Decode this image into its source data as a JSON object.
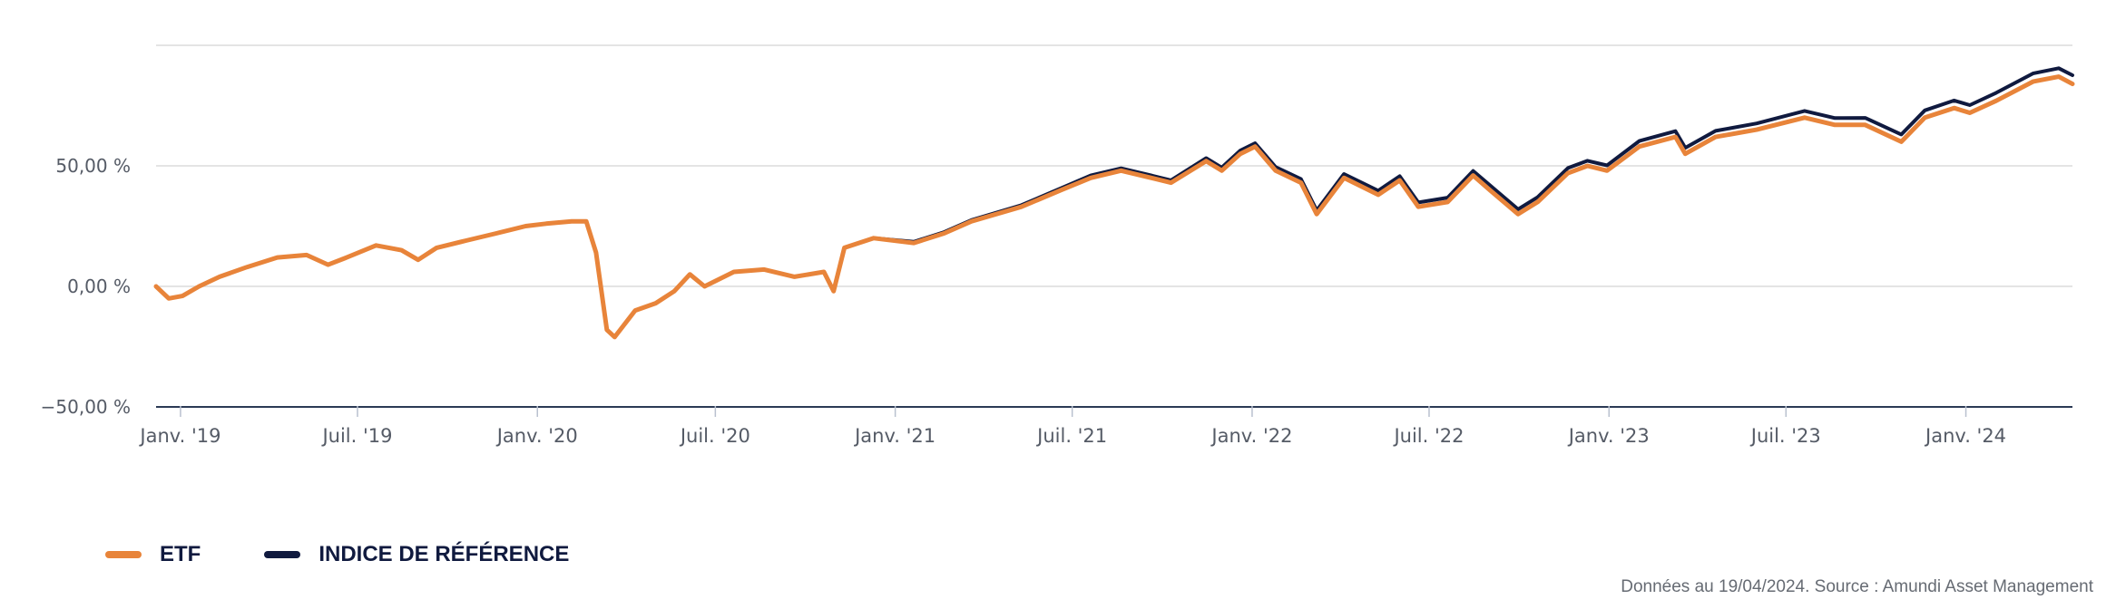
{
  "chart_data": {
    "type": "line",
    "y_ticks": [
      "−50,00 %",
      "0,00 %",
      "50,00 %",
      ""
    ],
    "ylim": [
      -50,
      100
    ],
    "grid": true,
    "x_ticks": [
      "Janv. '19",
      "Juil. '19",
      "Janv. '20",
      "Juil. '20",
      "Janv. '21",
      "Juil. '21",
      "Janv. '22",
      "Juil. '22",
      "Janv. '23",
      "Juil. '23",
      "Janv. '24"
    ],
    "x_range": [
      "2018-12-07",
      "2024-04-19"
    ],
    "legend_position": "bottom-left",
    "series": [
      {
        "name": "ETF",
        "color": "#e8843a",
        "points": [
          [
            "2018-12-07",
            0
          ],
          [
            "2018-12-20",
            -5
          ],
          [
            "2019-01-03",
            -4
          ],
          [
            "2019-01-20",
            0
          ],
          [
            "2019-02-10",
            4
          ],
          [
            "2019-03-10",
            8
          ],
          [
            "2019-04-10",
            12
          ],
          [
            "2019-05-10",
            13
          ],
          [
            "2019-06-01",
            9
          ],
          [
            "2019-06-20",
            12
          ],
          [
            "2019-07-20",
            17
          ],
          [
            "2019-08-15",
            15
          ],
          [
            "2019-09-01",
            11
          ],
          [
            "2019-09-20",
            16
          ],
          [
            "2019-10-20",
            19
          ],
          [
            "2019-11-20",
            22
          ],
          [
            "2019-12-20",
            25
          ],
          [
            "2020-01-10",
            26
          ],
          [
            "2020-02-05",
            27
          ],
          [
            "2020-02-20",
            27
          ],
          [
            "2020-03-01",
            14
          ],
          [
            "2020-03-12",
            -18
          ],
          [
            "2020-03-20",
            -21
          ],
          [
            "2020-04-10",
            -10
          ],
          [
            "2020-05-01",
            -7
          ],
          [
            "2020-05-20",
            -2
          ],
          [
            "2020-06-05",
            5
          ],
          [
            "2020-06-20",
            0
          ],
          [
            "2020-07-20",
            6
          ],
          [
            "2020-08-20",
            7
          ],
          [
            "2020-09-20",
            4
          ],
          [
            "2020-10-20",
            6
          ],
          [
            "2020-10-30",
            -2
          ],
          [
            "2020-11-10",
            16
          ],
          [
            "2020-12-10",
            20
          ],
          [
            "2021-01-20",
            18
          ],
          [
            "2021-02-20",
            22
          ],
          [
            "2021-03-20",
            27
          ],
          [
            "2021-05-10",
            33
          ],
          [
            "2021-06-20",
            40
          ],
          [
            "2021-07-20",
            45
          ],
          [
            "2021-08-20",
            48
          ],
          [
            "2021-09-20",
            45
          ],
          [
            "2021-10-10",
            43
          ],
          [
            "2021-11-15",
            52
          ],
          [
            "2021-12-01",
            48
          ],
          [
            "2021-12-20",
            55
          ],
          [
            "2022-01-04",
            58
          ],
          [
            "2022-01-25",
            48
          ],
          [
            "2022-02-20",
            43
          ],
          [
            "2022-03-08",
            30
          ],
          [
            "2022-04-05",
            45
          ],
          [
            "2022-05-10",
            38
          ],
          [
            "2022-06-01",
            44
          ],
          [
            "2022-06-20",
            33
          ],
          [
            "2022-07-20",
            35
          ],
          [
            "2022-08-15",
            46
          ],
          [
            "2022-09-01",
            40
          ],
          [
            "2022-09-30",
            30
          ],
          [
            "2022-10-20",
            35
          ],
          [
            "2022-11-20",
            47
          ],
          [
            "2022-12-10",
            50
          ],
          [
            "2022-12-30",
            48
          ],
          [
            "2023-02-01",
            58
          ],
          [
            "2023-03-10",
            62
          ],
          [
            "2023-03-20",
            55
          ],
          [
            "2023-04-20",
            62
          ],
          [
            "2023-06-01",
            65
          ],
          [
            "2023-07-20",
            70
          ],
          [
            "2023-08-20",
            67
          ],
          [
            "2023-09-20",
            67
          ],
          [
            "2023-10-27",
            60
          ],
          [
            "2023-11-20",
            70
          ],
          [
            "2023-12-20",
            74
          ],
          [
            "2024-01-05",
            72
          ],
          [
            "2024-02-01",
            77
          ],
          [
            "2024-03-10",
            85
          ],
          [
            "2024-04-05",
            87
          ],
          [
            "2024-04-19",
            84
          ]
        ]
      },
      {
        "name": "INDICE DE RÉFÉRENCE",
        "color": "#101a3f",
        "points": [
          [
            "2018-12-07",
            0
          ],
          [
            "2018-12-20",
            -5
          ],
          [
            "2019-01-03",
            -4
          ],
          [
            "2019-01-20",
            0
          ],
          [
            "2019-02-10",
            4
          ],
          [
            "2019-03-10",
            8
          ],
          [
            "2019-04-10",
            12
          ],
          [
            "2019-05-10",
            13
          ],
          [
            "2019-06-01",
            9
          ],
          [
            "2019-06-20",
            12
          ],
          [
            "2019-07-20",
            17
          ],
          [
            "2019-08-15",
            15
          ],
          [
            "2019-09-01",
            11
          ],
          [
            "2019-09-20",
            16
          ],
          [
            "2019-10-20",
            19
          ],
          [
            "2019-11-20",
            22
          ],
          [
            "2019-12-20",
            25
          ],
          [
            "2020-01-10",
            26
          ],
          [
            "2020-02-05",
            27
          ],
          [
            "2020-02-20",
            27
          ],
          [
            "2020-03-01",
            14
          ],
          [
            "2020-03-12",
            -18
          ],
          [
            "2020-03-20",
            -21
          ],
          [
            "2020-04-10",
            -10
          ],
          [
            "2020-05-01",
            -7
          ],
          [
            "2020-05-20",
            -2
          ],
          [
            "2020-06-05",
            5
          ],
          [
            "2020-06-20",
            0
          ],
          [
            "2020-07-20",
            6
          ],
          [
            "2020-08-20",
            7
          ],
          [
            "2020-09-20",
            4
          ],
          [
            "2020-10-20",
            6
          ],
          [
            "2020-10-30",
            -2
          ],
          [
            "2020-11-10",
            16
          ],
          [
            "2020-12-10",
            20
          ],
          [
            "2021-01-20",
            18.5
          ],
          [
            "2021-02-20",
            22.5
          ],
          [
            "2021-03-20",
            27.5
          ],
          [
            "2021-05-10",
            33.7
          ],
          [
            "2021-06-20",
            40.8
          ],
          [
            "2021-07-20",
            46
          ],
          [
            "2021-08-20",
            49
          ],
          [
            "2021-09-20",
            46
          ],
          [
            "2021-10-10",
            44
          ],
          [
            "2021-11-15",
            53.2
          ],
          [
            "2021-12-01",
            49.3
          ],
          [
            "2021-12-20",
            56.4
          ],
          [
            "2022-01-04",
            59.4
          ],
          [
            "2022-01-25",
            49.5
          ],
          [
            "2022-02-20",
            44.5
          ],
          [
            "2022-03-08",
            31.5
          ],
          [
            "2022-04-05",
            46.6
          ],
          [
            "2022-05-10",
            39.7
          ],
          [
            "2022-06-01",
            45.7
          ],
          [
            "2022-06-20",
            34.8
          ],
          [
            "2022-07-20",
            36.8
          ],
          [
            "2022-08-15",
            47.9
          ],
          [
            "2022-09-01",
            42
          ],
          [
            "2022-09-30",
            32
          ],
          [
            "2022-10-20",
            37
          ],
          [
            "2022-11-20",
            49.1
          ],
          [
            "2022-12-10",
            52.1
          ],
          [
            "2022-12-30",
            50.2
          ],
          [
            "2023-02-01",
            60.3
          ],
          [
            "2023-03-10",
            64.4
          ],
          [
            "2023-03-20",
            57.5
          ],
          [
            "2023-04-20",
            64.5
          ],
          [
            "2023-06-01",
            67.6
          ],
          [
            "2023-07-20",
            72.8
          ],
          [
            "2023-08-20",
            69.8
          ],
          [
            "2023-09-20",
            69.9
          ],
          [
            "2023-10-27",
            63
          ],
          [
            "2023-11-20",
            73
          ],
          [
            "2023-12-20",
            77.1
          ],
          [
            "2024-01-05",
            75.2
          ],
          [
            "2024-02-01",
            80.3
          ],
          [
            "2024-03-10",
            88.4
          ],
          [
            "2024-04-05",
            90.5
          ],
          [
            "2024-04-19",
            87.6
          ]
        ]
      }
    ]
  },
  "footer": {
    "source": "Données au 19/04/2024. Source : Amundi Asset Management"
  }
}
